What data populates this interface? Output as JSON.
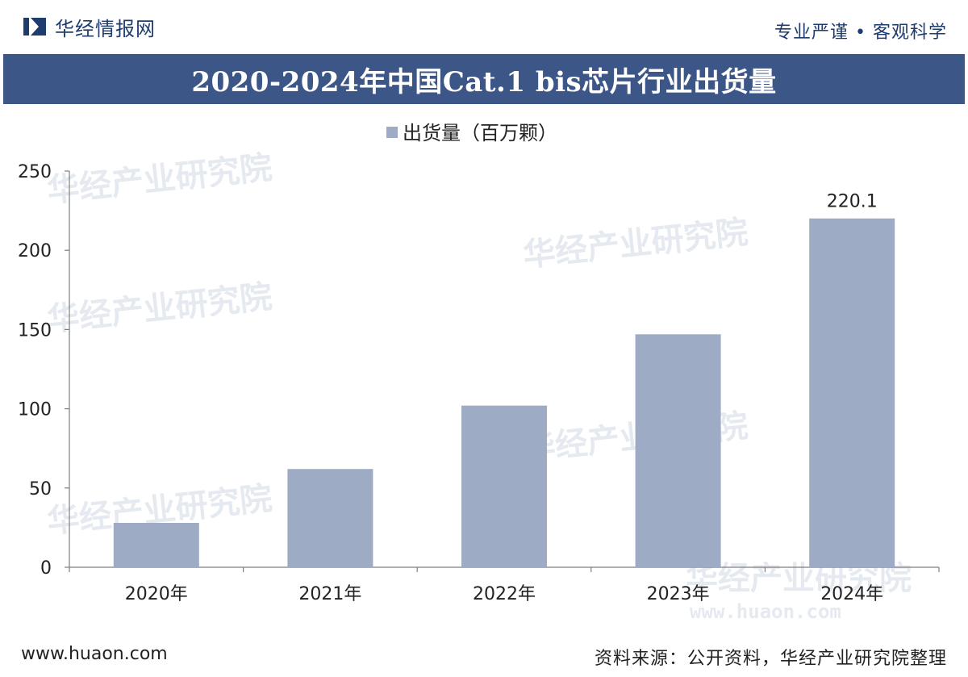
{
  "header": {
    "brand": "华经情报网",
    "slogan": "专业严谨 • 客观科学"
  },
  "title": "2020-2024年中国Cat.1 bis芯片行业出货量",
  "chart_data": {
    "type": "bar",
    "title": "2020-2024年中国Cat.1 bis芯片行业出货量",
    "categories": [
      "2020年",
      "2021年",
      "2022年",
      "2023年",
      "2024年"
    ],
    "series": [
      {
        "name": "出货量（百万颗）",
        "values": [
          28,
          62,
          102,
          147,
          220.1
        ]
      }
    ],
    "data_labels": [
      "",
      "",
      "",
      "",
      "220.1"
    ],
    "yticks": [
      "0",
      "50",
      "100",
      "150",
      "200",
      "250"
    ],
    "ylim": [
      0,
      250
    ],
    "xlabel": "",
    "ylabel": "",
    "grid": false,
    "legend_position": "top-center",
    "bar_color": "#9eabc4",
    "axis_color": "#7f7f7f"
  },
  "watermark": {
    "text": "华经产业研究院",
    "site": "www.huaon.com"
  },
  "footer": {
    "site": "www.huaon.com",
    "source": "资料来源：公开资料，华经产业研究院整理"
  },
  "colors": {
    "title_bar": "#3d5688",
    "brand_text": "#1f3c6e",
    "watermark": "#e5e9f0"
  }
}
